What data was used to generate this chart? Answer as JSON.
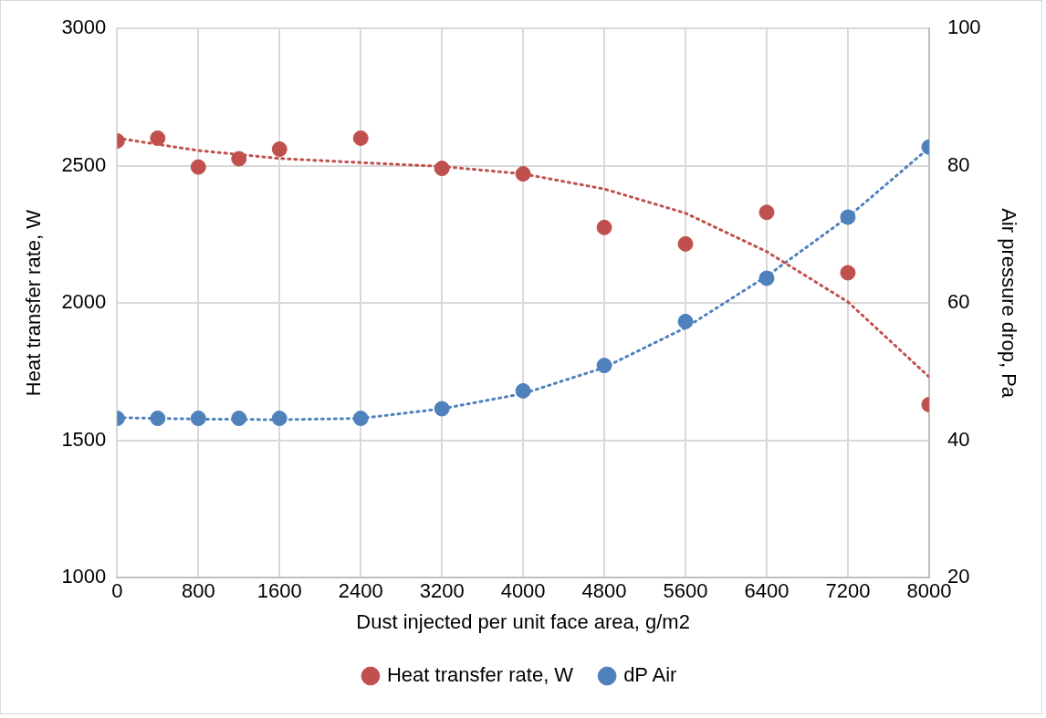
{
  "chart_data": {
    "type": "scatter",
    "xlabel": "Dust injected per unit face area, g/m2",
    "ylabel": "Heat transfer rate, W",
    "y2label": "Air pressure drop, Pa",
    "x": [
      0,
      400,
      800,
      1200,
      1600,
      2400,
      3200,
      4000,
      4800,
      5600,
      6400,
      7200,
      8000
    ],
    "series": [
      {
        "name": "Heat transfer rate, W",
        "color": "#c0504d",
        "values": [
          2590,
          2600,
          2495,
          2525,
          2560,
          2600,
          2490,
          2470,
          2275,
          2215,
          2330,
          2110,
          1630
        ]
      },
      {
        "name": "dP Air",
        "color": "#4f81bd",
        "axis": "y2",
        "values": [
          43.2,
          43.2,
          43.2,
          43.2,
          43.2,
          43.2,
          44.6,
          47.2,
          50.9,
          57.3,
          63.6,
          72.5,
          82.7
        ]
      },
      {
        "type": "line",
        "color": "#c0504d",
        "line_style": "dotted",
        "marker": "none",
        "x": [
          0,
          800,
          1600,
          2400,
          3200,
          4000,
          4800,
          5600,
          6400,
          7200,
          8000
        ],
        "values": [
          2600,
          2555,
          2526,
          2511,
          2497,
          2470,
          2415,
          2327,
          2187,
          2004,
          1731
        ]
      },
      {
        "type": "line",
        "color": "#4f81bd",
        "axis": "y2",
        "line_style": "dotted",
        "marker": "none",
        "x": [
          0,
          800,
          1600,
          2400,
          3200,
          4000,
          4800,
          5600,
          6400,
          7200,
          8000
        ],
        "values": [
          43.3,
          43.1,
          43.0,
          43.2,
          44.6,
          46.8,
          50.6,
          56.4,
          63.9,
          72.5,
          82.6
        ]
      }
    ],
    "marker": "circle",
    "xlim": [
      0,
      8000
    ],
    "xticks": [
      0,
      800,
      1600,
      2400,
      3200,
      4000,
      4800,
      5600,
      6400,
      7200,
      8000
    ],
    "ylim": [
      1000,
      3000
    ],
    "yticks": [
      1000,
      1500,
      2000,
      2500,
      3000
    ],
    "y2lim": [
      20,
      100
    ],
    "y2ticks": [
      20,
      40,
      60,
      80,
      100
    ],
    "grid": true,
    "legend": "bottom"
  }
}
